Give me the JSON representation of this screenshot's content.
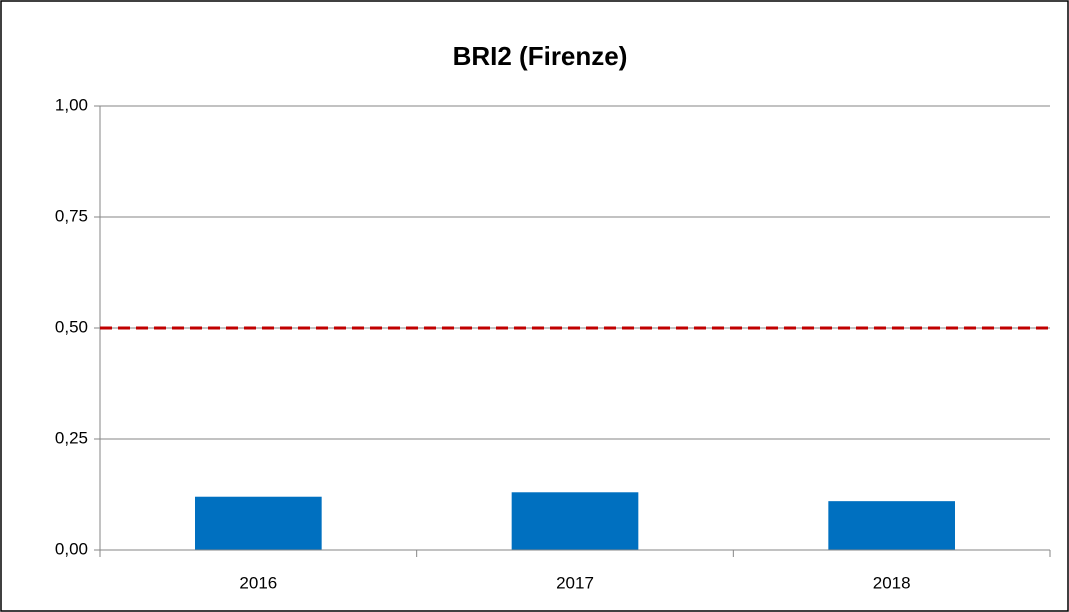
{
  "chart_data": {
    "type": "bar",
    "title": "BRI2 (Firenze)",
    "categories": [
      "2016",
      "2017",
      "2018"
    ],
    "values": [
      0.12,
      0.13,
      0.11
    ],
    "color": "#0070c0",
    "ylim": [
      0,
      1
    ],
    "yticks": [
      {
        "value": 0,
        "label": "0,00"
      },
      {
        "value": 0.25,
        "label": "0,25"
      },
      {
        "value": 0.5,
        "label": "0,50"
      },
      {
        "value": 0.75,
        "label": "0,75"
      },
      {
        "value": 1,
        "label": "1,00"
      }
    ],
    "grid": true,
    "reference_line": {
      "value": 0.5,
      "color": "#c00000"
    }
  }
}
